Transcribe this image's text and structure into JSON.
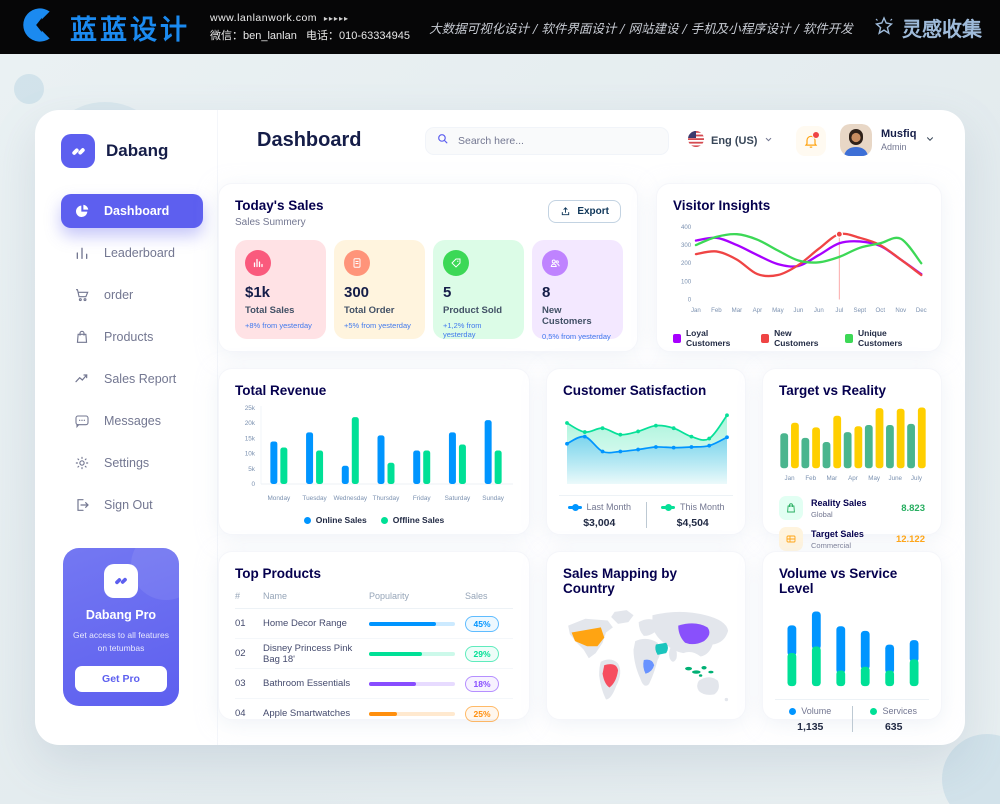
{
  "banner": {
    "brand": "蓝蓝设计",
    "url": "www.lanlanwork.com",
    "arrows": "▸▸▸▸▸",
    "wechat": "微信：ben_lanlan",
    "phone": "电话：010-63334945",
    "services": "大数据可视化设计 / 软件界面设计 / 网站建设 / 手机及小程序设计 / 软件开发",
    "collect": "灵感收集"
  },
  "sidebar": {
    "brand": "Dabang",
    "items": [
      {
        "label": "Dashboard",
        "active": true
      },
      {
        "label": "Leaderboard",
        "active": false
      },
      {
        "label": "order",
        "active": false
      },
      {
        "label": "Products",
        "active": false
      },
      {
        "label": "Sales Report",
        "active": false
      },
      {
        "label": "Messages",
        "active": false
      },
      {
        "label": "Settings",
        "active": false
      },
      {
        "label": "Sign Out",
        "active": false
      }
    ],
    "pro": {
      "title": "Dabang Pro",
      "desc": "Get access to all features on tetumbas",
      "button": "Get Pro"
    }
  },
  "header": {
    "title": "Dashboard",
    "search_placeholder": "Search here...",
    "language": "Eng (US)",
    "user": {
      "name": "Musfiq",
      "role": "Admin"
    }
  },
  "cards": {
    "today_sales": {
      "title": "Today's Sales",
      "subtitle": "Sales Summery",
      "export_label": "Export",
      "stats": [
        {
          "value": "$1k",
          "label": "Total Sales",
          "delta": "+8% from yesterday",
          "bg": "#FFE2E5",
          "icon_bg": "#FA5A7D"
        },
        {
          "value": "300",
          "label": "Total Order",
          "delta": "+5% from yesterday",
          "bg": "#FFF4DE",
          "icon_bg": "#FF947A"
        },
        {
          "value": "5",
          "label": "Product Sold",
          "delta": "+1,2% from yesterday",
          "bg": "#DCFCE7",
          "icon_bg": "#3CD856"
        },
        {
          "value": "8",
          "label": "New Customers",
          "delta": "0,5% from yesterday",
          "bg": "#F3E8FF",
          "icon_bg": "#BF83FF"
        }
      ]
    }
  },
  "chart_data": [
    {
      "id": "visitor_insights",
      "type": "line",
      "title": "Visitor Insights",
      "x": [
        "Jan",
        "Feb",
        "Mar",
        "Apr",
        "May",
        "Jun",
        "Jun",
        "Jul",
        "Sept",
        "Oct",
        "Nov",
        "Dec"
      ],
      "ylim": [
        0,
        400
      ],
      "yticks": [
        0,
        100,
        200,
        300,
        400
      ],
      "series": [
        {
          "name": "Loyal Customers",
          "color": "#A700FF",
          "values": [
            325,
            340,
            300,
            245,
            195,
            185,
            245,
            310,
            320,
            295,
            220,
            140
          ]
        },
        {
          "name": "New Customers",
          "color": "#EF4444",
          "values": [
            250,
            265,
            220,
            140,
            135,
            190,
            280,
            360,
            340,
            300,
            220,
            135
          ]
        },
        {
          "name": "Unique Customers",
          "color": "#3CD856",
          "values": [
            300,
            345,
            360,
            330,
            270,
            215,
            205,
            235,
            285,
            310,
            335,
            200
          ]
        }
      ],
      "marker": {
        "series": "New Customers",
        "index": 7,
        "value": 360
      }
    },
    {
      "id": "total_revenue",
      "type": "bar",
      "title": "Total Revenue",
      "categories": [
        "Monday",
        "Tuesday",
        "Wednesday",
        "Thursday",
        "Friday",
        "Saturday",
        "Sunday"
      ],
      "ylim": [
        0,
        25
      ],
      "yticks": [
        "0",
        "5k",
        "10k",
        "15k",
        "20k",
        "25k"
      ],
      "unit": "k",
      "series": [
        {
          "name": "Online Sales",
          "color": "#0095FF",
          "values": [
            14,
            17,
            6,
            16,
            11,
            17,
            21
          ]
        },
        {
          "name": "Offline Sales",
          "color": "#00E096",
          "values": [
            12,
            11,
            22,
            7,
            11,
            13,
            11
          ]
        }
      ]
    },
    {
      "id": "customer_satisfaction",
      "type": "area",
      "title": "Customer Satisfaction",
      "series": [
        {
          "name": "Last Month",
          "color": "#0095FF",
          "total": "$3,004",
          "values": [
            46,
            57,
            34,
            34,
            37,
            41,
            40,
            41,
            43,
            56
          ]
        },
        {
          "name": "This Month",
          "color": "#07E098",
          "total": "$4,504",
          "values": [
            78,
            64,
            70,
            60,
            65,
            74,
            70,
            57,
            54,
            90
          ]
        }
      ]
    },
    {
      "id": "target_vs_reality",
      "type": "bar",
      "title": "Target vs Reality",
      "categories": [
        "Jan",
        "Feb",
        "Mar",
        "Apr",
        "May",
        "June",
        "July"
      ],
      "ylim": [
        0,
        11
      ],
      "series": [
        {
          "name": "Reality Sales",
          "color": "#4AB58E",
          "values": [
            6.0,
            5.2,
            4.5,
            6.2,
            7.4,
            7.4,
            7.6
          ]
        },
        {
          "name": "Target Sales",
          "color": "#FFCF00",
          "values": [
            7.8,
            7.0,
            9.0,
            7.2,
            10.3,
            10.2,
            10.4
          ]
        }
      ],
      "legend": [
        {
          "label": "Reality Sales",
          "sublabel": "Global",
          "value": "8.823",
          "value_color": "#27AE60",
          "icon_bg": "#E2FFF3"
        },
        {
          "label": "Target Sales",
          "sublabel": "Commercial",
          "value": "12.122",
          "value_color": "#FFA412",
          "icon_bg": "#FFF4DE"
        }
      ]
    },
    {
      "id": "top_products",
      "type": "table",
      "title": "Top Products",
      "headers": [
        "#",
        "Name",
        "Popularity",
        "Sales"
      ],
      "rows": [
        {
          "num": "01",
          "name": "Home Decor Range",
          "popularity": 78,
          "color": "#0095FF",
          "sales": "45%"
        },
        {
          "num": "02",
          "name": "Disney Princess Pink Bag 18'",
          "popularity": 62,
          "color": "#00E096",
          "sales": "29%"
        },
        {
          "num": "03",
          "name": "Bathroom Essentials",
          "popularity": 55,
          "color": "#884DFF",
          "sales": "18%"
        },
        {
          "num": "04",
          "name": "Apple Smartwatches",
          "popularity": 33,
          "color": "#FF8F0D",
          "sales": "25%"
        }
      ]
    },
    {
      "id": "sales_map",
      "type": "map",
      "title": "Sales Mapping by Country",
      "countries": [
        {
          "id": "us",
          "name": "United States",
          "color": "#FFA412"
        },
        {
          "id": "brazil",
          "name": "Brazil",
          "color": "#F64E60"
        },
        {
          "id": "china",
          "name": "China",
          "color": "#8950FC"
        },
        {
          "id": "saudi",
          "name": "Saudi Arabia",
          "color": "#1BC5BD"
        },
        {
          "id": "congo",
          "name": "DR Congo",
          "color": "#6993FF"
        },
        {
          "id": "indonesia",
          "name": "Indonesia",
          "color": "#00B074"
        }
      ]
    },
    {
      "id": "volume_vs_service",
      "type": "stacked-bar",
      "title": "Volume vs Service Level",
      "ylim": [
        0,
        85
      ],
      "series": [
        {
          "name": "Volume",
          "color": "#0095FF",
          "value": "1,135",
          "values": [
            30,
            38,
            48,
            39,
            28,
            21
          ]
        },
        {
          "name": "Services",
          "color": "#00E096",
          "value": "635",
          "values": [
            36,
            43,
            17,
            21,
            17,
            29
          ]
        }
      ]
    }
  ]
}
